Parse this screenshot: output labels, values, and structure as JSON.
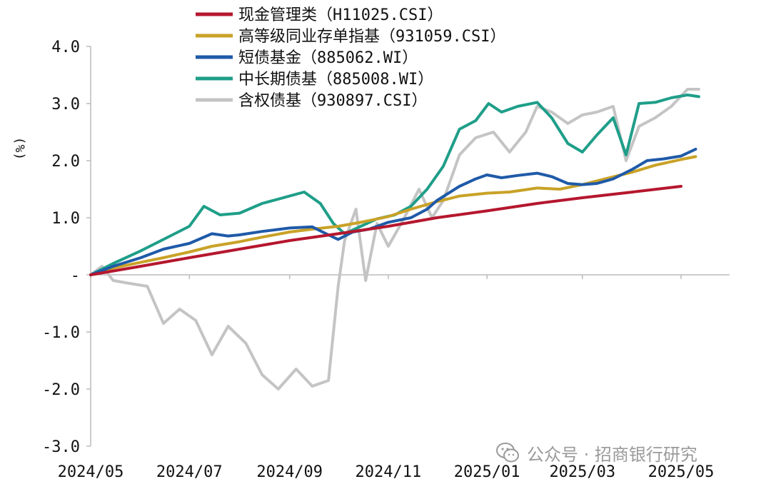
{
  "watermark": "公众号 · 招商银行研究",
  "chart_data": {
    "type": "line",
    "ylabel": "(%)",
    "ylim": [
      -3.0,
      4.0
    ],
    "yticks": [
      {
        "value": 4.0,
        "label": "4.0"
      },
      {
        "value": 3.0,
        "label": "3.0"
      },
      {
        "value": 2.0,
        "label": "2.0"
      },
      {
        "value": 1.0,
        "label": "1.0"
      },
      {
        "value": 0.0,
        "label": "-"
      },
      {
        "value": -1.0,
        "label": "-1.0"
      },
      {
        "value": -2.0,
        "label": "-2.0"
      },
      {
        "value": -3.0,
        "label": "-3.0"
      }
    ],
    "xlim": [
      "2024-05-01",
      "2025-05-31"
    ],
    "xticks": [
      "2024/05",
      "2024/07",
      "2024/09",
      "2024/11",
      "2025/01",
      "2025/03",
      "2025/05"
    ],
    "xtick_dates": [
      "2024-05-01",
      "2024-07-01",
      "2024-09-01",
      "2024-11-01",
      "2025-01-01",
      "2025-03-01",
      "2025-05-01"
    ],
    "grid": false,
    "legend_position": "top-left",
    "series": [
      {
        "name": "现金管理类（H11025.CSI）",
        "color": "#b5172e",
        "points": [
          [
            "2024-05-01",
            0.0
          ],
          [
            "2024-06-01",
            0.15
          ],
          [
            "2024-07-01",
            0.3
          ],
          [
            "2024-08-01",
            0.45
          ],
          [
            "2024-09-01",
            0.6
          ],
          [
            "2024-10-01",
            0.72
          ],
          [
            "2024-11-01",
            0.85
          ],
          [
            "2024-12-01",
            1.0
          ],
          [
            "2025-01-01",
            1.12
          ],
          [
            "2025-02-01",
            1.25
          ],
          [
            "2025-03-01",
            1.35
          ],
          [
            "2025-04-01",
            1.45
          ],
          [
            "2025-05-01",
            1.55
          ]
        ]
      },
      {
        "name": "高等级同业存单指基（931059.CSI）",
        "color": "#c9a227",
        "points": [
          [
            "2024-05-01",
            0.0
          ],
          [
            "2024-05-15",
            0.12
          ],
          [
            "2024-06-01",
            0.22
          ],
          [
            "2024-06-15",
            0.3
          ],
          [
            "2024-07-01",
            0.4
          ],
          [
            "2024-07-15",
            0.5
          ],
          [
            "2024-08-01",
            0.58
          ],
          [
            "2024-08-15",
            0.66
          ],
          [
            "2024-09-01",
            0.75
          ],
          [
            "2024-09-15",
            0.8
          ],
          [
            "2024-10-01",
            0.85
          ],
          [
            "2024-10-15",
            0.92
          ],
          [
            "2024-11-01",
            1.02
          ],
          [
            "2024-11-15",
            1.15
          ],
          [
            "2024-12-01",
            1.28
          ],
          [
            "2024-12-15",
            1.38
          ],
          [
            "2025-01-01",
            1.43
          ],
          [
            "2025-01-15",
            1.45
          ],
          [
            "2025-02-01",
            1.52
          ],
          [
            "2025-02-15",
            1.5
          ],
          [
            "2025-03-01",
            1.58
          ],
          [
            "2025-03-15",
            1.68
          ],
          [
            "2025-04-01",
            1.8
          ],
          [
            "2025-04-15",
            1.92
          ],
          [
            "2025-05-01",
            2.02
          ],
          [
            "2025-05-10",
            2.07
          ]
        ]
      },
      {
        "name": "短债基金（885062.WI）",
        "color": "#1f5aa8",
        "points": [
          [
            "2024-05-01",
            0.0
          ],
          [
            "2024-05-15",
            0.15
          ],
          [
            "2024-06-01",
            0.3
          ],
          [
            "2024-06-15",
            0.45
          ],
          [
            "2024-07-01",
            0.55
          ],
          [
            "2024-07-15",
            0.72
          ],
          [
            "2024-07-25",
            0.68
          ],
          [
            "2024-08-01",
            0.7
          ],
          [
            "2024-08-15",
            0.76
          ],
          [
            "2024-09-01",
            0.82
          ],
          [
            "2024-09-15",
            0.84
          ],
          [
            "2024-09-25",
            0.7
          ],
          [
            "2024-10-01",
            0.62
          ],
          [
            "2024-10-10",
            0.75
          ],
          [
            "2024-10-20",
            0.8
          ],
          [
            "2024-11-01",
            0.92
          ],
          [
            "2024-11-15",
            1.0
          ],
          [
            "2024-11-25",
            1.15
          ],
          [
            "2024-12-01",
            1.3
          ],
          [
            "2024-12-15",
            1.55
          ],
          [
            "2024-12-25",
            1.68
          ],
          [
            "2025-01-01",
            1.75
          ],
          [
            "2025-01-10",
            1.7
          ],
          [
            "2025-01-20",
            1.74
          ],
          [
            "2025-02-01",
            1.78
          ],
          [
            "2025-02-10",
            1.72
          ],
          [
            "2025-02-20",
            1.6
          ],
          [
            "2025-03-01",
            1.58
          ],
          [
            "2025-03-10",
            1.6
          ],
          [
            "2025-03-20",
            1.68
          ],
          [
            "2025-04-01",
            1.85
          ],
          [
            "2025-04-10",
            2.0
          ],
          [
            "2025-04-20",
            2.03
          ],
          [
            "2025-05-01",
            2.08
          ],
          [
            "2025-05-10",
            2.2
          ]
        ]
      },
      {
        "name": "中长期债基（885008.WI）",
        "color": "#1f9e89",
        "points": [
          [
            "2024-05-01",
            0.0
          ],
          [
            "2024-05-15",
            0.2
          ],
          [
            "2024-06-01",
            0.42
          ],
          [
            "2024-06-15",
            0.62
          ],
          [
            "2024-07-01",
            0.85
          ],
          [
            "2024-07-10",
            1.2
          ],
          [
            "2024-07-20",
            1.05
          ],
          [
            "2024-08-01",
            1.08
          ],
          [
            "2024-08-15",
            1.25
          ],
          [
            "2024-09-01",
            1.38
          ],
          [
            "2024-09-10",
            1.45
          ],
          [
            "2024-09-20",
            1.25
          ],
          [
            "2024-09-28",
            0.9
          ],
          [
            "2024-10-05",
            0.72
          ],
          [
            "2024-10-15",
            0.85
          ],
          [
            "2024-10-25",
            0.98
          ],
          [
            "2024-11-05",
            1.05
          ],
          [
            "2024-11-15",
            1.2
          ],
          [
            "2024-11-25",
            1.5
          ],
          [
            "2024-12-05",
            1.9
          ],
          [
            "2024-12-15",
            2.55
          ],
          [
            "2024-12-25",
            2.7
          ],
          [
            "2025-01-02",
            3.0
          ],
          [
            "2025-01-10",
            2.85
          ],
          [
            "2025-01-20",
            2.95
          ],
          [
            "2025-02-01",
            3.02
          ],
          [
            "2025-02-10",
            2.75
          ],
          [
            "2025-02-20",
            2.3
          ],
          [
            "2025-03-01",
            2.15
          ],
          [
            "2025-03-10",
            2.45
          ],
          [
            "2025-03-20",
            2.75
          ],
          [
            "2025-03-28",
            2.1
          ],
          [
            "2025-04-05",
            3.0
          ],
          [
            "2025-04-15",
            3.02
          ],
          [
            "2025-04-25",
            3.1
          ],
          [
            "2025-05-05",
            3.15
          ],
          [
            "2025-05-12",
            3.12
          ]
        ]
      },
      {
        "name": "含权债基（930897.CSI）",
        "color": "#c4c4c4",
        "points": [
          [
            "2024-05-01",
            0.0
          ],
          [
            "2024-05-08",
            0.15
          ],
          [
            "2024-05-15",
            -0.1
          ],
          [
            "2024-05-25",
            -0.15
          ],
          [
            "2024-06-05",
            -0.2
          ],
          [
            "2024-06-15",
            -0.85
          ],
          [
            "2024-06-25",
            -0.6
          ],
          [
            "2024-07-05",
            -0.8
          ],
          [
            "2024-07-15",
            -1.4
          ],
          [
            "2024-07-25",
            -0.9
          ],
          [
            "2024-08-05",
            -1.2
          ],
          [
            "2024-08-15",
            -1.75
          ],
          [
            "2024-08-25",
            -2.0
          ],
          [
            "2024-09-05",
            -1.65
          ],
          [
            "2024-09-15",
            -1.95
          ],
          [
            "2024-09-25",
            -1.85
          ],
          [
            "2024-10-01",
            -0.2
          ],
          [
            "2024-10-05",
            0.6
          ],
          [
            "2024-10-12",
            1.15
          ],
          [
            "2024-10-18",
            -0.1
          ],
          [
            "2024-10-25",
            0.9
          ],
          [
            "2024-11-01",
            0.5
          ],
          [
            "2024-11-10",
            0.95
          ],
          [
            "2024-11-20",
            1.5
          ],
          [
            "2024-11-28",
            1.0
          ],
          [
            "2024-12-05",
            1.3
          ],
          [
            "2024-12-15",
            2.1
          ],
          [
            "2024-12-25",
            2.4
          ],
          [
            "2025-01-05",
            2.5
          ],
          [
            "2025-01-15",
            2.15
          ],
          [
            "2025-01-25",
            2.5
          ],
          [
            "2025-02-01",
            2.95
          ],
          [
            "2025-02-10",
            2.85
          ],
          [
            "2025-02-20",
            2.65
          ],
          [
            "2025-03-01",
            2.8
          ],
          [
            "2025-03-10",
            2.85
          ],
          [
            "2025-03-20",
            2.95
          ],
          [
            "2025-03-28",
            2.0
          ],
          [
            "2025-04-05",
            2.6
          ],
          [
            "2025-04-15",
            2.75
          ],
          [
            "2025-04-25",
            2.95
          ],
          [
            "2025-05-05",
            3.25
          ],
          [
            "2025-05-12",
            3.25
          ]
        ]
      }
    ]
  }
}
